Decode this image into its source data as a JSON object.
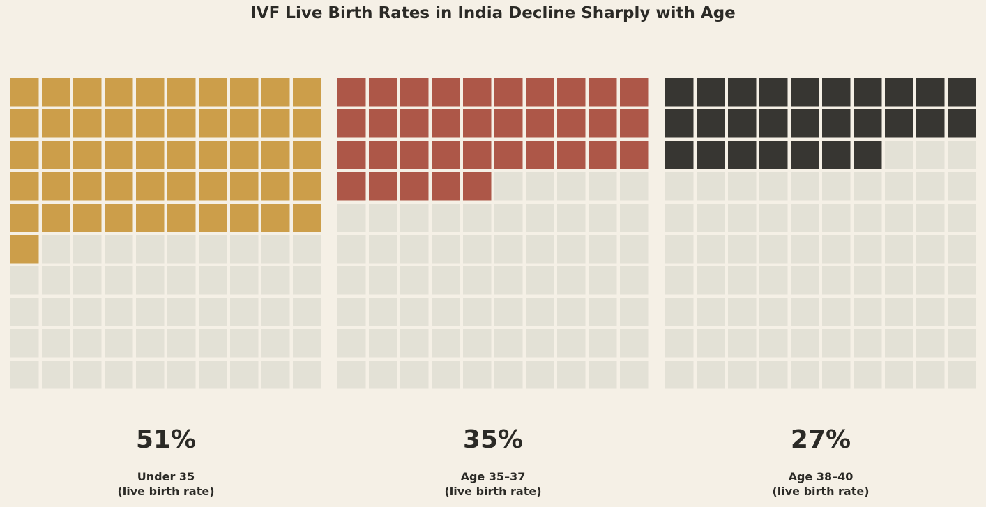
{
  "chart_data": {
    "type": "waffle",
    "title": "IVF Live Birth Rates in India Decline Sharply with Age",
    "grid": {
      "rows": 10,
      "cols": 10
    },
    "empty_color": "#e3e1d6",
    "panels": [
      {
        "category": "Under 35",
        "sublabel": "(live birth rate)",
        "value": 51,
        "value_label": "51%",
        "color": "#cc9e4a"
      },
      {
        "category": "Age 35–37",
        "sublabel": "(live birth rate)",
        "value": 35,
        "value_label": "35%",
        "color": "#ad5748"
      },
      {
        "category": "Age 38–40",
        "sublabel": "(live birth rate)",
        "value": 27,
        "value_label": "27%",
        "color": "#373632"
      }
    ]
  }
}
